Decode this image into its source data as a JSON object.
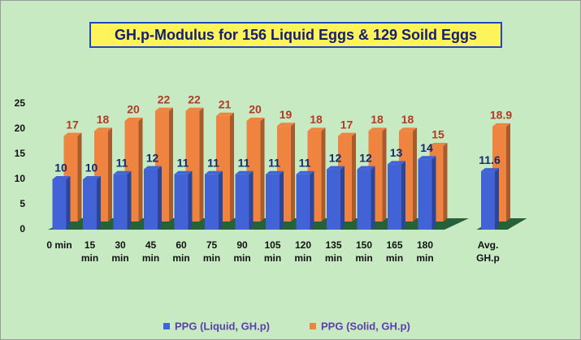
{
  "chart_data": {
    "type": "bar",
    "title": "GH.p-Modulus for 156 Liquid Eggs & 129 Soild Eggs",
    "categories": [
      "0 min",
      "15 min",
      "30 min",
      "45 min",
      "60 min",
      "75 min",
      "90 min",
      "105 min",
      "120 min",
      "135 min",
      "150 min",
      "165 min",
      "180 min",
      "Avg. GH.p"
    ],
    "series": [
      {
        "name": "PPG (Liquid, GH.p)",
        "color": "#4263d6",
        "values": [
          10,
          10,
          11,
          12,
          11,
          11,
          11,
          11,
          11,
          12,
          12,
          13,
          14,
          11.6
        ]
      },
      {
        "name": "PPG (Solid, GH.p)",
        "color": "#ef8440",
        "values": [
          17,
          18,
          20,
          22,
          22,
          21,
          20,
          19,
          18,
          17,
          18,
          18,
          15,
          18.9
        ]
      }
    ],
    "ylim": [
      0,
      25
    ],
    "yticks": [
      0,
      5,
      10,
      15,
      20,
      25
    ],
    "legend": "bottom"
  }
}
